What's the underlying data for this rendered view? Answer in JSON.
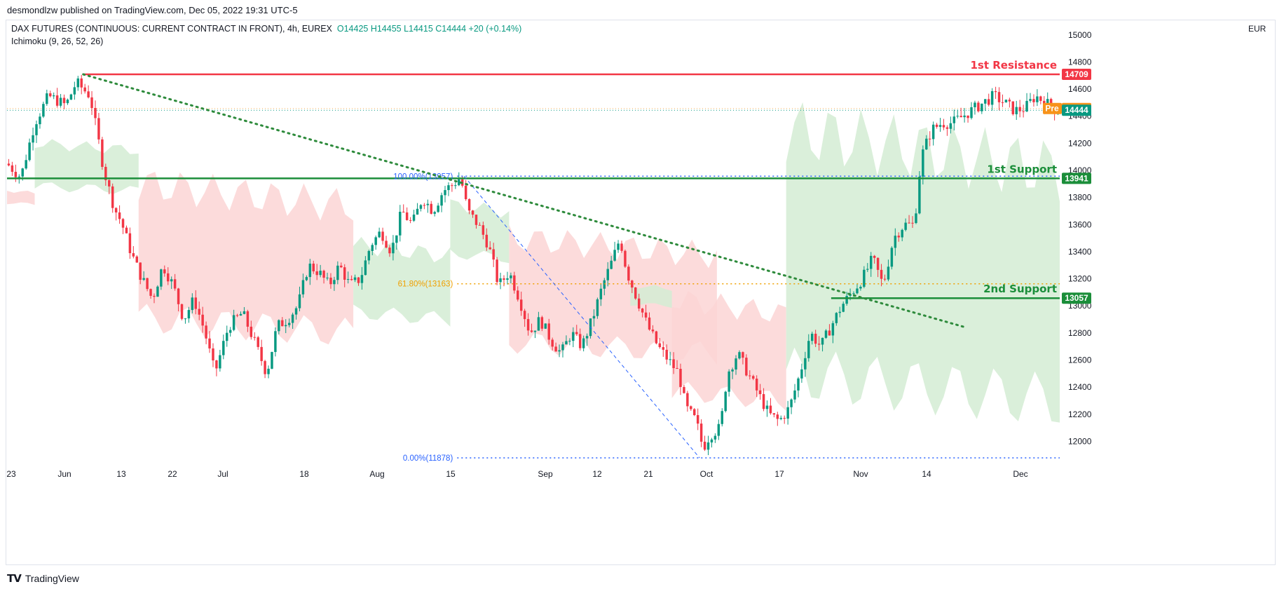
{
  "header": {
    "publisher_text": "desmondlzw published on TradingView.com, Dec 05, 2022 19:31 UTC-5"
  },
  "legend": {
    "symbol": "DAX FUTURES (CONTINUOUS: CURRENT CONTRACT IN FRONT), 4h, EUREX",
    "ohlc": "O14425 H14455 L14415 C14444 +20 (+0.14%)",
    "indicator": "Ichimoku (9, 26, 52, 26)",
    "currency": "EUR"
  },
  "colors": {
    "up": "#089981",
    "down": "#f23645",
    "resistance": "#f23645",
    "support": "#1b8e3a",
    "cloud_bull": "#d3ecd4",
    "cloud_bear": "#fcd5d5",
    "trendline": "#2e8b3c",
    "fib_blue": "#2962ff",
    "fib_orange": "#f0a000",
    "pre_tag": "#f7931a",
    "price_tag": "#089981"
  },
  "footer": {
    "brand": "TradingView",
    "logo_icon": "tradingview-logo-icon"
  },
  "chart_data": {
    "type": "candlestick",
    "timeframe": "4h",
    "ylim": [
      11800,
      15100
    ],
    "y_ticks": [
      12000,
      12200,
      12400,
      12600,
      12800,
      13000,
      13200,
      13400,
      13600,
      13800,
      14000,
      14200,
      14400,
      14600,
      14800,
      15000
    ],
    "x_ticks": [
      "23",
      "Jun",
      "13",
      "22",
      "Jul",
      "18",
      "Aug",
      "15",
      "Sep",
      "12",
      "21",
      "Oct",
      "17",
      "Nov",
      "14",
      "Dec"
    ],
    "close_path": [
      [
        0,
        14050
      ],
      [
        4,
        13950
      ],
      [
        8,
        14350
      ],
      [
        12,
        14550
      ],
      [
        17,
        14480
      ],
      [
        20,
        14650
      ],
      [
        24,
        14550
      ],
      [
        28,
        14000
      ],
      [
        31,
        13720
      ],
      [
        33,
        13620
      ],
      [
        36,
        13380
      ],
      [
        39,
        13200
      ],
      [
        42,
        13050
      ],
      [
        45,
        13300
      ],
      [
        48,
        13150
      ],
      [
        51,
        12900
      ],
      [
        54,
        13050
      ],
      [
        57,
        12820
      ],
      [
        60,
        12500
      ],
      [
        64,
        12850
      ],
      [
        68,
        12950
      ],
      [
        72,
        12700
      ],
      [
        75,
        12500
      ],
      [
        78,
        12850
      ],
      [
        81,
        12900
      ],
      [
        84,
        13000
      ],
      [
        87,
        13300
      ],
      [
        90,
        13250
      ],
      [
        93,
        13150
      ],
      [
        96,
        13300
      ],
      [
        99,
        13150
      ],
      [
        102,
        13200
      ],
      [
        105,
        13450
      ],
      [
        108,
        13550
      ],
      [
        111,
        13400
      ],
      [
        114,
        13700
      ],
      [
        117,
        13600
      ],
      [
        120,
        13800
      ],
      [
        123,
        13700
      ],
      [
        126,
        13850
      ],
      [
        129,
        13900
      ],
      [
        131,
        13950
      ],
      [
        133,
        13700
      ],
      [
        136,
        13600
      ],
      [
        139,
        13450
      ],
      [
        142,
        13150
      ],
      [
        145,
        13250
      ],
      [
        148,
        13050
      ],
      [
        151,
        12800
      ],
      [
        154,
        12900
      ],
      [
        157,
        12750
      ],
      [
        160,
        12650
      ],
      [
        163,
        12800
      ],
      [
        166,
        12700
      ],
      [
        169,
        12900
      ],
      [
        172,
        13150
      ],
      [
        175,
        13350
      ],
      [
        177,
        13500
      ],
      [
        179,
        13250
      ],
      [
        182,
        13050
      ],
      [
        185,
        12850
      ],
      [
        188,
        12700
      ],
      [
        191,
        12600
      ],
      [
        194,
        12500
      ],
      [
        196,
        12250
      ],
      [
        199,
        12150
      ],
      [
        201,
        11950
      ],
      [
        203,
        12050
      ],
      [
        206,
        12100
      ],
      [
        208,
        12500
      ],
      [
        211,
        12650
      ],
      [
        214,
        12500
      ],
      [
        217,
        12350
      ],
      [
        220,
        12200
      ],
      [
        223,
        12150
      ],
      [
        226,
        12250
      ],
      [
        229,
        12500
      ],
      [
        232,
        12800
      ],
      [
        235,
        12700
      ],
      [
        238,
        12850
      ],
      [
        241,
        13000
      ],
      [
        244,
        13100
      ],
      [
        247,
        13200
      ],
      [
        250,
        13350
      ],
      [
        253,
        13150
      ],
      [
        256,
        13500
      ],
      [
        259,
        13600
      ],
      [
        262,
        13600
      ],
      [
        264,
        14100
      ],
      [
        267,
        14300
      ],
      [
        270,
        14350
      ],
      [
        273,
        14350
      ],
      [
        276,
        14400
      ],
      [
        279,
        14450
      ],
      [
        282,
        14500
      ],
      [
        285,
        14550
      ],
      [
        288,
        14500
      ],
      [
        291,
        14440
      ],
      [
        294,
        14460
      ],
      [
        297,
        14550
      ],
      [
        300,
        14500
      ],
      [
        303,
        14444
      ]
    ],
    "key_levels": [
      {
        "label": "1st Resistance",
        "price": 14709
      },
      {
        "label": "1st Support",
        "price": 13941
      },
      {
        "label": "2nd Support",
        "price": 13057
      }
    ],
    "fibonacci": {
      "levels": [
        {
          "label": "100.00%(13957)",
          "price": 13957
        },
        {
          "label": "61.80%(13163)",
          "price": 13163
        },
        {
          "label": "0.00%(11878)",
          "price": 11878
        }
      ]
    },
    "trendline": {
      "from": [
        22,
        14709
      ],
      "to": [
        277,
        12840
      ]
    },
    "price_tags": [
      {
        "label": "14709",
        "price": 14709,
        "kind": "resistance"
      },
      {
        "label": "14457",
        "price": 14457,
        "kind": "pre",
        "prefix": "Pre"
      },
      {
        "label": "14444",
        "price": 14444,
        "kind": "last"
      },
      {
        "label": "13941",
        "price": 13941,
        "kind": "support"
      },
      {
        "label": "13057",
        "price": 13057,
        "kind": "support"
      }
    ],
    "ichimoku_cloud": [
      {
        "from": 0,
        "to": 8,
        "sentiment": "bear",
        "top": 13850,
        "bottom": 13750
      },
      {
        "from": 8,
        "to": 38,
        "sentiment": "bull",
        "top": 14200,
        "bottom": 13850
      },
      {
        "from": 38,
        "to": 100,
        "sentiment": "bear",
        "top": 13900,
        "bottom": 12800
      },
      {
        "from": 100,
        "to": 128,
        "sentiment": "bull",
        "top": 13450,
        "bottom": 12900
      },
      {
        "from": 128,
        "to": 145,
        "sentiment": "bull",
        "top": 13750,
        "bottom": 13350
      },
      {
        "from": 145,
        "to": 205,
        "sentiment": "bear",
        "top": 13500,
        "bottom": 12650
      },
      {
        "from": 180,
        "to": 192,
        "sentiment": "bull",
        "top": 13150,
        "bottom": 13000
      },
      {
        "from": 192,
        "to": 225,
        "sentiment": "bear",
        "top": 13050,
        "bottom": 12300
      },
      {
        "from": 225,
        "to": 304,
        "sentiment": "bull",
        "top": 14300,
        "bottom": 12300
      }
    ]
  }
}
